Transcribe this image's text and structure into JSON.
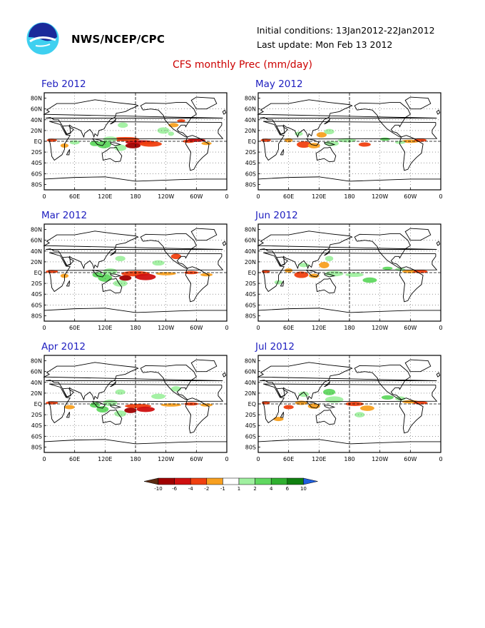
{
  "header": {
    "agency": "NWS/NCEP/CPC",
    "initial_conditions": "Initial conditions: 13Jan2012-22Jan2012",
    "last_update": "Last update: Mon Feb 13 2012",
    "title": "CFS monthly Prec (mm/day)"
  },
  "logo": {
    "icon": "noaa-logo-icon"
  },
  "axes": {
    "lat_labels": [
      "80N",
      "60N",
      "40N",
      "20N",
      "EQ",
      "20S",
      "40S",
      "60S",
      "80S"
    ],
    "lon_labels": [
      "0",
      "60E",
      "120E",
      "180",
      "120W",
      "60W",
      "0"
    ]
  },
  "panels": [
    {
      "title": "Feb 2012"
    },
    {
      "title": "May 2012"
    },
    {
      "title": "Mar 2012"
    },
    {
      "title": "Jun 2012"
    },
    {
      "title": "Apr 2012"
    },
    {
      "title": "Jul 2012"
    }
  ],
  "colorbar": {
    "labels": [
      "-10",
      "-6",
      "-4",
      "-2",
      "-1",
      "1",
      "2",
      "4",
      "6",
      "10"
    ],
    "colors": [
      "#5a2a10",
      "#a00000",
      "#d01010",
      "#f04010",
      "#f8a020",
      "#ffffff",
      "#a0f0a0",
      "#60d860",
      "#30b030",
      "#108010",
      "#2060e0"
    ]
  }
}
